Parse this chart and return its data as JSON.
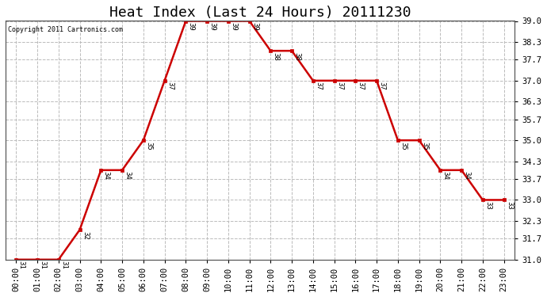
{
  "title": "Heat Index (Last 24 Hours) 20111230",
  "copyright": "Copyright 2011 Cartronics.com",
  "x_labels": [
    "00:00",
    "01:00",
    "02:00",
    "03:00",
    "04:00",
    "05:00",
    "06:00",
    "07:00",
    "08:00",
    "09:00",
    "10:00",
    "11:00",
    "12:00",
    "13:00",
    "14:00",
    "15:00",
    "16:00",
    "17:00",
    "18:00",
    "19:00",
    "20:00",
    "21:00",
    "22:00",
    "23:00"
  ],
  "y_values": [
    31,
    31,
    31,
    32,
    34,
    34,
    35,
    37,
    39,
    39,
    39,
    39,
    38,
    38,
    37,
    37,
    37,
    37,
    35,
    35,
    34,
    34,
    33,
    33
  ],
  "ylim_min": 31.0,
  "ylim_max": 39.0,
  "y_ticks": [
    31.0,
    31.7,
    32.3,
    33.0,
    33.7,
    34.3,
    35.0,
    35.7,
    36.3,
    37.0,
    37.7,
    38.3,
    39.0
  ],
  "line_color": "#cc0000",
  "marker_color": "#cc0000",
  "bg_color": "#ffffff",
  "grid_color": "#bbbbbb",
  "title_fontsize": 13,
  "annotation_fontsize": 6.5,
  "tick_fontsize": 7.5
}
